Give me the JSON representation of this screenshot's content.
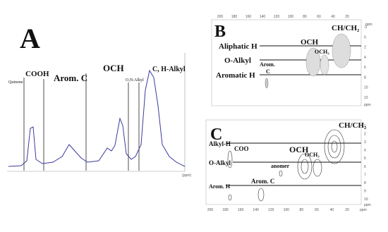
{
  "panels": [
    {
      "label": "A",
      "annotations": [
        "Quinone",
        "COOH",
        "Arom. C",
        "OCH",
        "O,N-Alkyl",
        "C, H-Alkyl"
      ],
      "x_unit": "(ppm)"
    },
    {
      "label": "B",
      "row_labels": [
        "Aliphatic H",
        "O-Alkyl",
        "Aromatic H"
      ],
      "annotations": [
        "CH/CH₂",
        "OCH",
        "OCH₃",
        "Arom.",
        "C"
      ],
      "top_ticks": [
        200,
        180,
        160,
        140,
        120,
        100,
        80,
        60,
        40,
        20
      ],
      "top_unit": "ppm",
      "right_ticks": [
        -2,
        0,
        2,
        4,
        6,
        8,
        10,
        12
      ],
      "right_unit": "ppm"
    },
    {
      "label": "C",
      "row_labels": [
        "Alkyl-H",
        "O-Alkyl",
        "Arom. H"
      ],
      "annotations": [
        "CH/CH₂",
        "COO",
        "OCH",
        "OCH₃",
        "anomer",
        "Arom. C"
      ],
      "bottom_ticks": [
        200,
        180,
        160,
        140,
        120,
        100,
        80,
        60,
        40,
        20
      ],
      "bottom_unit": "ppm",
      "right_ticks": [
        1,
        2,
        3,
        4,
        5,
        6,
        7,
        8,
        9,
        10
      ],
      "right_unit": "ppm"
    }
  ]
}
